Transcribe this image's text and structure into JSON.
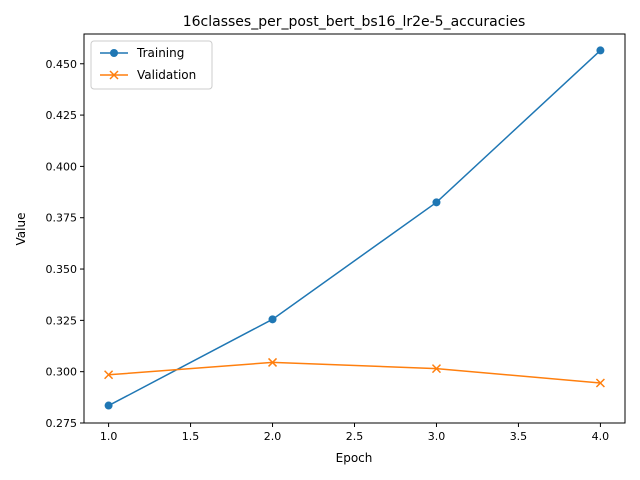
{
  "chart_data": {
    "type": "line",
    "title": "16classes_per_post_bert_bs16_lr2e-5_accuracies",
    "xlabel": "Epoch",
    "ylabel": "Value",
    "x": [
      1.0,
      2.0,
      3.0,
      4.0
    ],
    "xlim": [
      0.85,
      4.15
    ],
    "ylim": [
      0.275,
      0.4645
    ],
    "xticks": [
      1.0,
      1.5,
      2.0,
      2.5,
      3.0,
      3.5,
      4.0
    ],
    "xtick_labels": [
      "1.0",
      "1.5",
      "2.0",
      "2.5",
      "3.0",
      "3.5",
      "4.0"
    ],
    "yticks": [
      0.275,
      0.3,
      0.325,
      0.35,
      0.375,
      0.4,
      0.425,
      0.45
    ],
    "ytick_labels": [
      "0.275",
      "0.300",
      "0.325",
      "0.350",
      "0.375",
      "0.400",
      "0.425",
      "0.450"
    ],
    "grid": false,
    "legend_position": "top-left",
    "series": [
      {
        "name": "Training",
        "values": [
          0.2835,
          0.3255,
          0.3825,
          0.4565
        ],
        "color": "#1f77b4",
        "marker": "circle"
      },
      {
        "name": "Validation",
        "values": [
          0.2985,
          0.3045,
          0.3015,
          0.2945
        ],
        "color": "#ff7f0e",
        "marker": "x"
      }
    ]
  }
}
